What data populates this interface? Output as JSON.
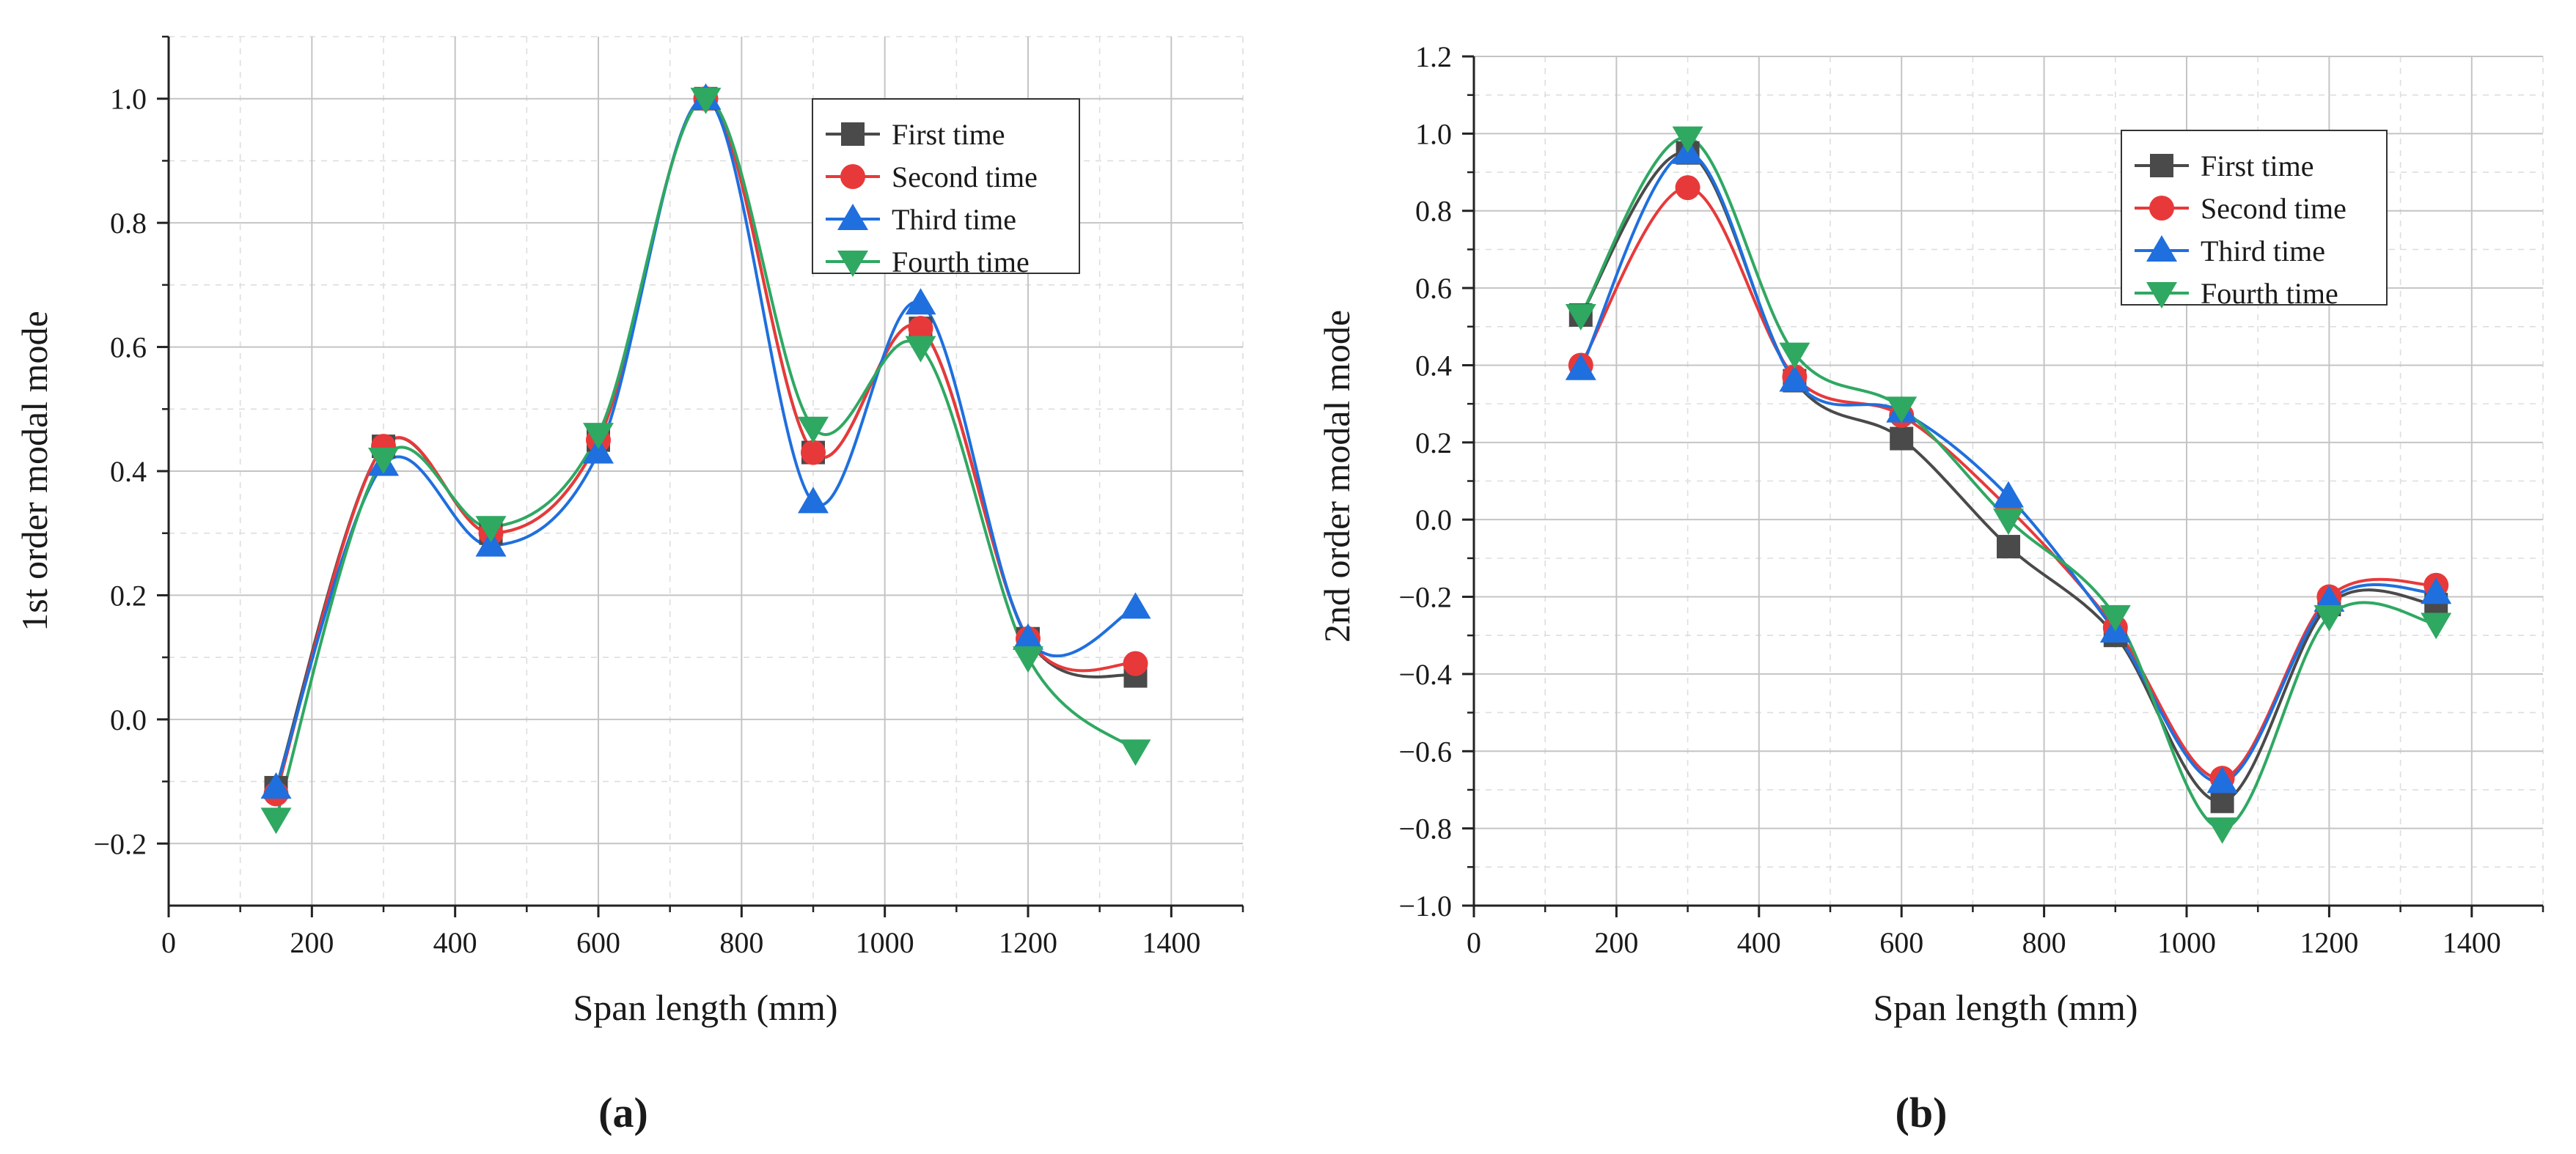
{
  "figure": {
    "panels": [
      {
        "label": "(a)",
        "label_letter": "a",
        "xlabel": "Span length (mm)",
        "ylabel": "1st order modal mode",
        "xticks": [
          "0",
          "200",
          "400",
          "600",
          "800",
          "1000",
          "1200",
          "1400"
        ],
        "yticks": [
          "−0.2",
          "0.0",
          "0.2",
          "0.4",
          "0.6",
          "0.8",
          "1.0"
        ]
      },
      {
        "label": "(b)",
        "label_letter": "b",
        "xlabel": "Span length (mm)",
        "ylabel": "2nd order modal mode",
        "xticks": [
          "0",
          "200",
          "400",
          "600",
          "800",
          "1000",
          "1200",
          "1400"
        ],
        "yticks": [
          "−1.0",
          "−0.8",
          "−0.6",
          "−0.4",
          "−0.2",
          "0.0",
          "0.2",
          "0.4",
          "0.6",
          "0.8",
          "1.0",
          "1.2"
        ]
      }
    ],
    "legend": [
      "First time",
      "Second time",
      "Third time",
      "Fourth time"
    ]
  },
  "chart_data": [
    {
      "type": "line",
      "xlabel": "Span length (mm)",
      "ylabel": "1st order modal mode",
      "xlim": [
        0,
        1500
      ],
      "ylim": [
        -0.3,
        1.1
      ],
      "grid": true,
      "legend_position": "top-right",
      "smoothed": true,
      "x": [
        150,
        300,
        450,
        600,
        750,
        900,
        1050,
        1200,
        1350
      ],
      "series": [
        {
          "name": "First time",
          "marker": "square",
          "color": "#4a4a4a",
          "values": [
            -0.11,
            0.44,
            0.3,
            0.45,
            1.0,
            0.43,
            0.63,
            0.13,
            0.07
          ]
        },
        {
          "name": "Second time",
          "marker": "circle",
          "color": "#e8393a",
          "values": [
            -0.12,
            0.44,
            0.3,
            0.45,
            1.0,
            0.43,
            0.63,
            0.13,
            0.09
          ]
        },
        {
          "name": "Third time",
          "marker": "triangle-up",
          "color": "#1f6fde",
          "values": [
            -0.11,
            0.41,
            0.28,
            0.43,
            1.0,
            0.35,
            0.67,
            0.13,
            0.18
          ]
        },
        {
          "name": "Fourth time",
          "marker": "triangle-down",
          "color": "#2fa862",
          "values": [
            -0.16,
            0.42,
            0.31,
            0.46,
            1.0,
            0.47,
            0.6,
            0.1,
            -0.05
          ]
        }
      ]
    },
    {
      "type": "line",
      "xlabel": "Span length (mm)",
      "ylabel": "2nd order modal mode",
      "xlim": [
        0,
        1500
      ],
      "ylim": [
        -1.0,
        1.2
      ],
      "grid": true,
      "legend_position": "top-right",
      "smoothed": true,
      "x": [
        150,
        300,
        450,
        600,
        750,
        900,
        1050,
        1200,
        1350
      ],
      "series": [
        {
          "name": "First time",
          "marker": "square",
          "color": "#4a4a4a",
          "values": [
            0.53,
            0.95,
            0.36,
            0.21,
            -0.07,
            -0.3,
            -0.73,
            -0.22,
            -0.22
          ]
        },
        {
          "name": "Second time",
          "marker": "circle",
          "color": "#e8393a",
          "values": [
            0.4,
            0.86,
            0.37,
            0.27,
            0.03,
            -0.28,
            -0.67,
            -0.2,
            -0.17
          ]
        },
        {
          "name": "Third time",
          "marker": "triangle-up",
          "color": "#1f6fde",
          "values": [
            0.39,
            0.95,
            0.36,
            0.28,
            0.06,
            -0.29,
            -0.68,
            -0.21,
            -0.19
          ]
        },
        {
          "name": "Fourth time",
          "marker": "triangle-down",
          "color": "#2fa862",
          "values": [
            0.53,
            0.99,
            0.43,
            0.29,
            0.0,
            -0.25,
            -0.8,
            -0.25,
            -0.27
          ]
        }
      ]
    }
  ]
}
